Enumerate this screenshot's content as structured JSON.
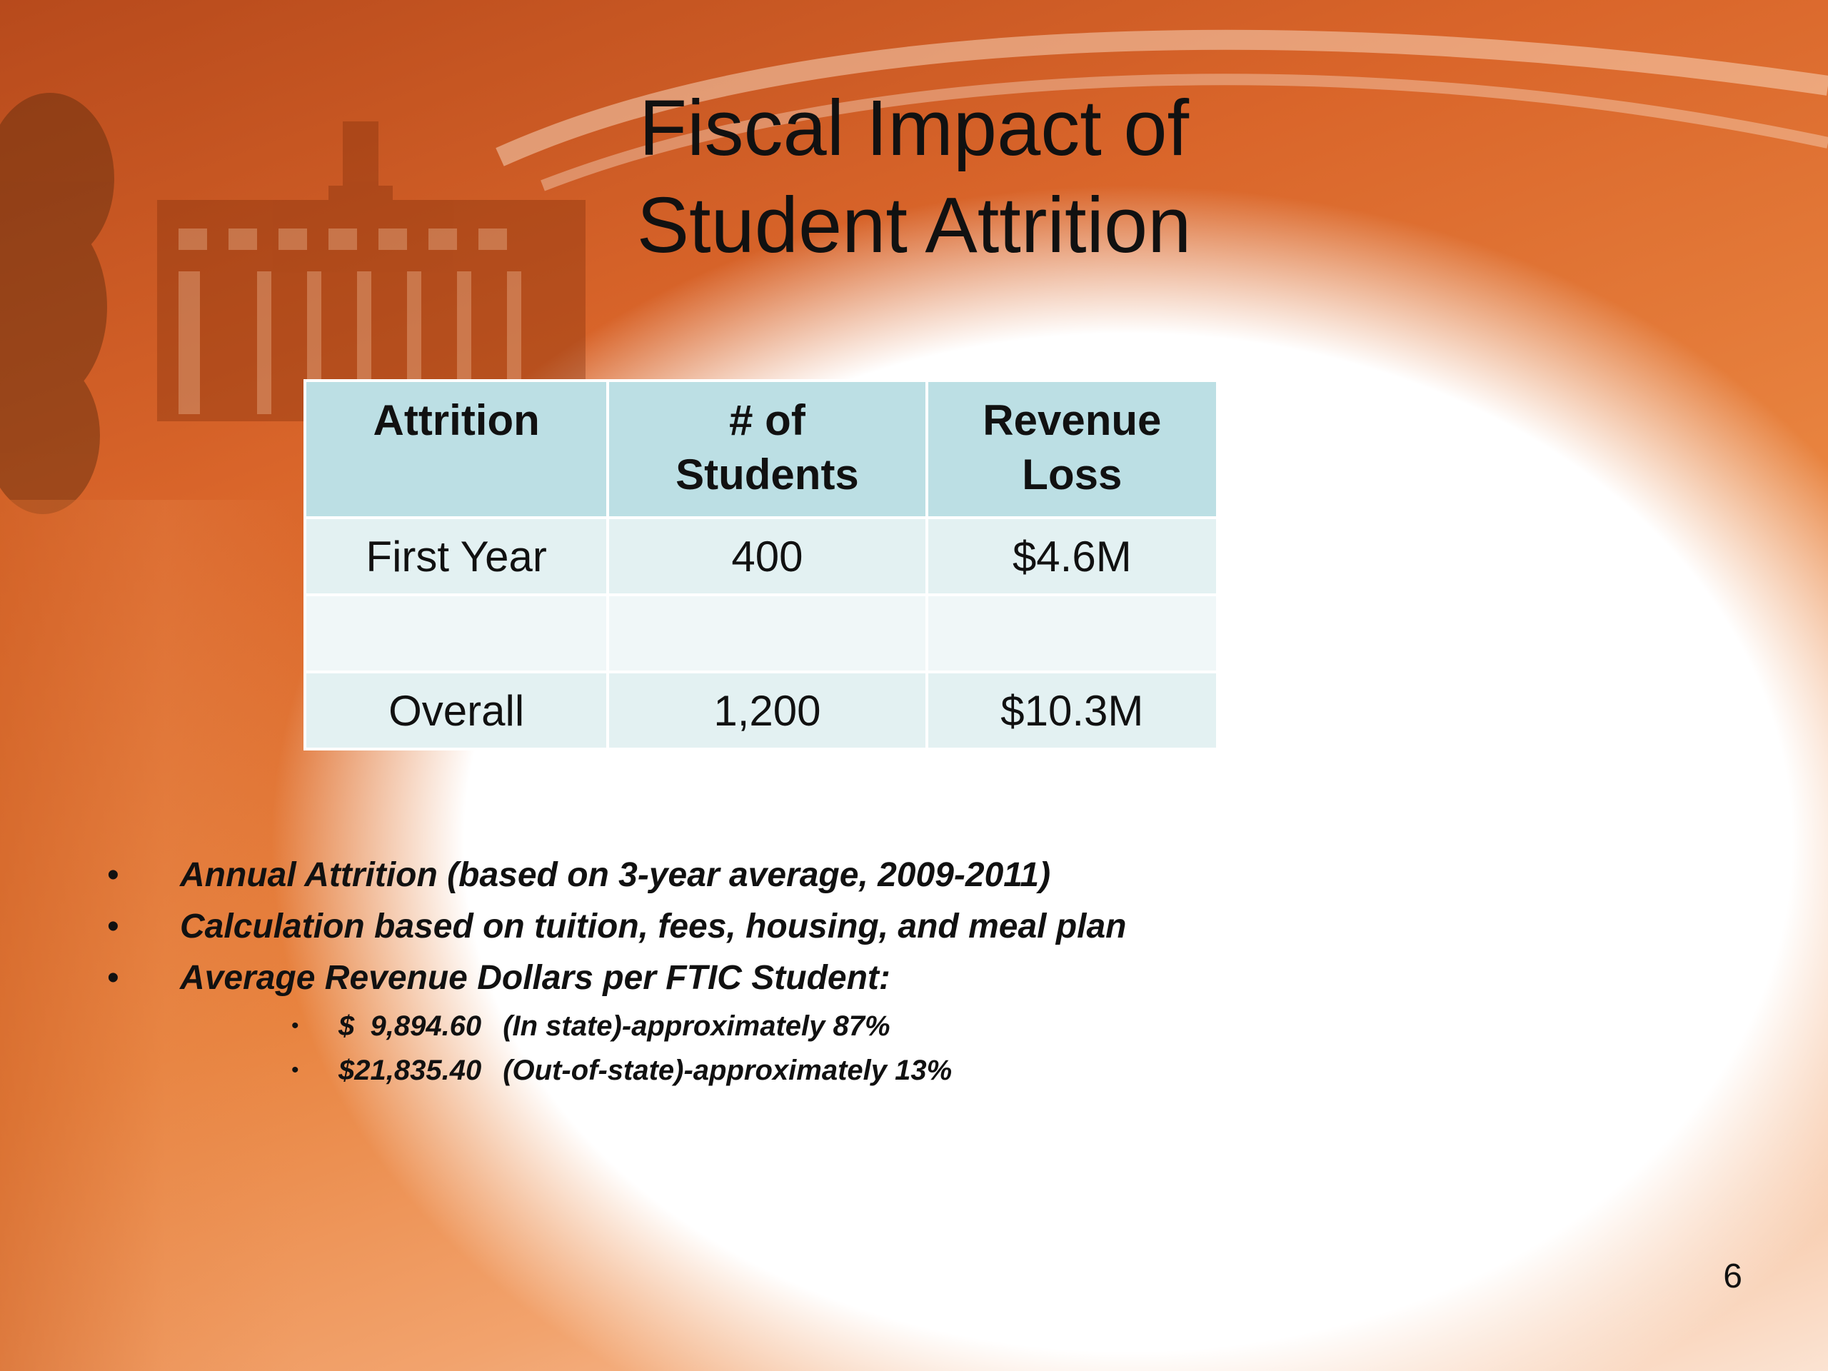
{
  "title": {
    "line1": "Fiscal Impact of",
    "line2": "Student Attrition"
  },
  "table": {
    "headers": [
      "Attrition",
      "# of Students",
      "Revenue Loss"
    ],
    "header_lines": [
      [
        "Attrition"
      ],
      [
        "# of",
        "Students"
      ],
      [
        "Revenue",
        "Loss"
      ]
    ],
    "rows": [
      [
        "First Year",
        "400",
        "$4.6M"
      ],
      [
        "",
        "",
        ""
      ],
      [
        "Overall",
        "1,200",
        "$10.3M"
      ]
    ]
  },
  "bullets": [
    "Annual Attrition (based on 3-year average, 2009-2011)",
    "Calculation based on tuition, fees, housing, and meal plan",
    "Average Revenue Dollars per FTIC Student:"
  ],
  "sub_bullets": [
    {
      "amount": "$  9,894.60",
      "text": "(In state)-approximately 87%"
    },
    {
      "amount": "$21,835.40",
      "text": "(Out-of-state)-approximately 13%"
    }
  ],
  "bullet_glyph": "•",
  "page_number": "6",
  "colors": {
    "header_fill": "#bcdfe4",
    "row_fill_a": "#e3f1f2",
    "row_fill_b": "#f0f7f8",
    "background_accent": "#d9652a"
  }
}
